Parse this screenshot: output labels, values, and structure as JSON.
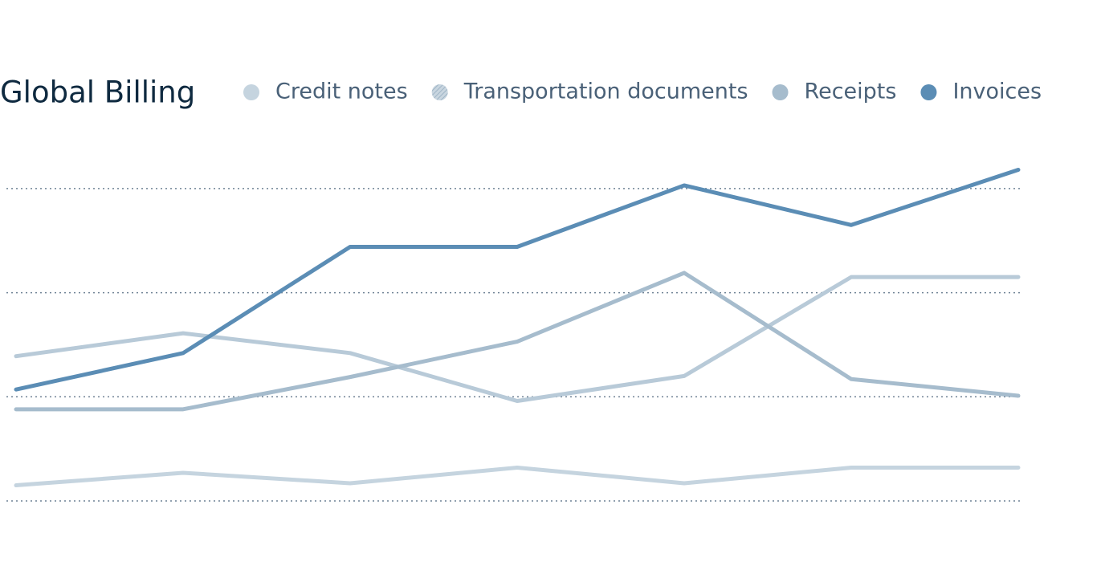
{
  "chart_data": {
    "type": "line",
    "title": "Global Billing",
    "categories": [
      null,
      null,
      null,
      null,
      null,
      null,
      null
    ],
    "series": [
      {
        "name": "Credit notes",
        "color": "#c5d4df",
        "values": [
          0.15,
          0.27,
          0.17,
          0.32,
          0.17,
          0.32,
          0.32
        ]
      },
      {
        "name": "Transportation documents",
        "color": "#b8cad8",
        "values": [
          1.39,
          1.61,
          1.42,
          0.96,
          1.2,
          2.15,
          2.15
        ]
      },
      {
        "name": "Receipts",
        "color": "#a6bccd",
        "values": [
          0.88,
          0.88,
          1.19,
          1.53,
          2.19,
          1.17,
          1.01
        ]
      },
      {
        "name": "Invoices",
        "color": "#5b8db5",
        "values": [
          1.07,
          1.42,
          2.44,
          2.44,
          3.03,
          2.65,
          3.18
        ]
      }
    ],
    "ylim": [
      0,
      3.5
    ],
    "yticks": [
      0,
      1,
      2,
      3
    ],
    "grid": true
  }
}
